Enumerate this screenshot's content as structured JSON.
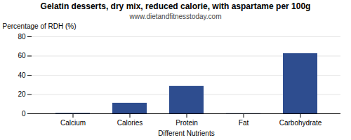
{
  "chart_data": {
    "type": "bar",
    "title": "Gelatin desserts, dry mix, reduced calorie, with aspartame per 100g",
    "subtitle": "www.dietandfitnesstoday.com",
    "categories": [
      "Calcium",
      "Calories",
      "Protein",
      "Fat",
      "Carbohydrate"
    ],
    "values": [
      0.5,
      11,
      28.5,
      0.2,
      62.5
    ],
    "color": "#2e4d8f",
    "xlabel": "Different Nutrients",
    "ylabel": "Percentage of RDH (%)",
    "ylim": [
      0,
      80
    ],
    "yticks": [
      0,
      20,
      40,
      60,
      80
    ],
    "grid": true
  }
}
